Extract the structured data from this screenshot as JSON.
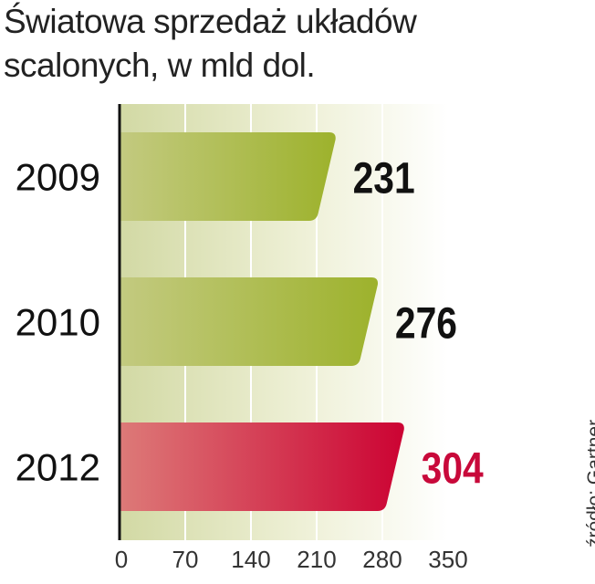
{
  "chart_data": {
    "type": "bar",
    "orientation": "horizontal",
    "title": "Światowa sprzedaż układów scalonych, w mld dol.",
    "title_lines": [
      "Światowa sprzedaż układów",
      "scalonych, w mld dol."
    ],
    "categories": [
      "2009",
      "2010",
      "2012"
    ],
    "values": [
      231,
      276,
      304
    ],
    "value_labels": [
      "231",
      "276",
      "304"
    ],
    "xlim": [
      0,
      350
    ],
    "x_ticks": [
      "0",
      "70",
      "140",
      "210",
      "280",
      "350"
    ],
    "grid": true,
    "bar_colors": [
      "#a4b43a",
      "#a4b43a",
      "#cf0a3a"
    ],
    "label_colors": [
      "#111111",
      "#111111",
      "#c8093a"
    ],
    "source": "źródło: Gartner"
  }
}
